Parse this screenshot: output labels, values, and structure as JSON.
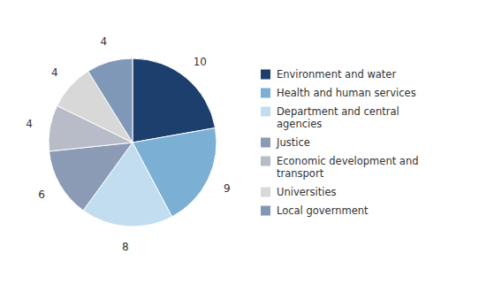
{
  "chart_data": {
    "type": "pie",
    "categories": [
      "Environment and water",
      "Health and human services",
      "Department and central\nagencies",
      "Justice",
      "Economic development and\ntransport",
      "Universities",
      "Local government"
    ],
    "values": [
      10,
      9,
      8,
      6,
      4,
      4,
      4
    ],
    "colors": [
      "#1c3f6e",
      "#7bafd4",
      "#c2ddf0",
      "#8c9bb5",
      "#b8bcc8",
      "#d8d8d8",
      "#8098b8"
    ],
    "data_labels": true,
    "legend": "right"
  }
}
